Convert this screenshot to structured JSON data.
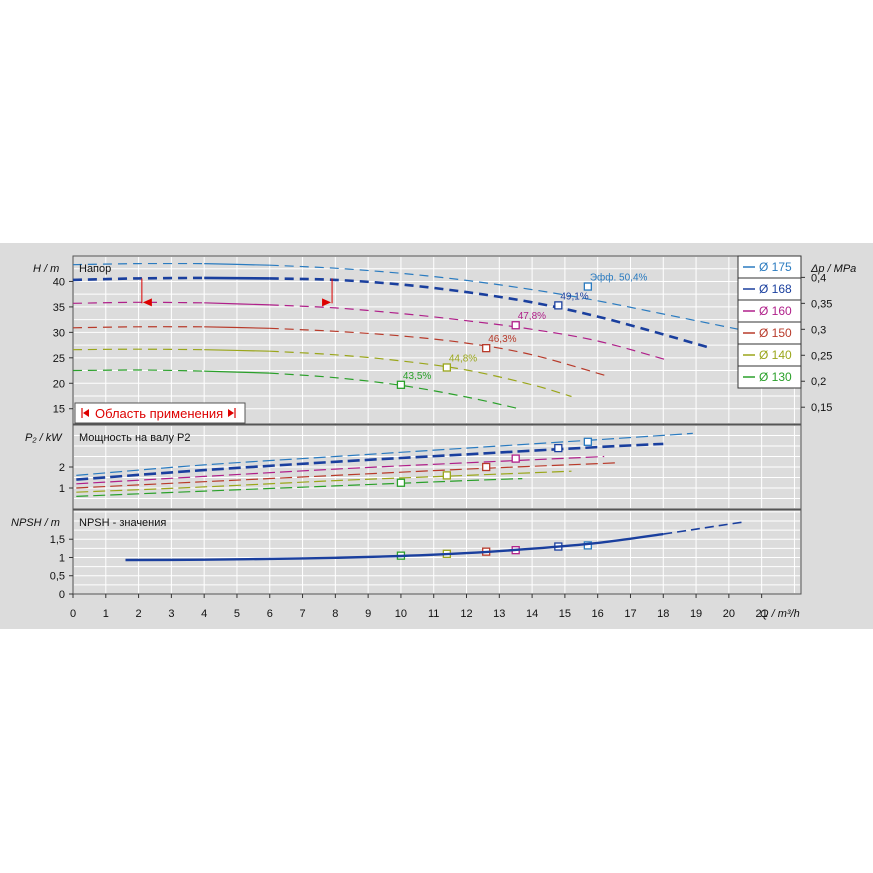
{
  "chart_data": {
    "type": "line",
    "colors": {
      "background": "#dcdcdc",
      "grid": "#ffffff",
      "range_marker": "#dd0000"
    },
    "x": {
      "label": "Q / m³/h",
      "ticks": [
        0,
        1,
        2,
        3,
        4,
        5,
        6,
        7,
        8,
        9,
        10,
        11,
        12,
        13,
        14,
        15,
        16,
        17,
        18,
        19,
        20,
        21
      ],
      "lim": [
        0,
        22.2
      ]
    },
    "panels": {
      "head": {
        "title": "Напор",
        "ylabel": "H / m",
        "ylim": [
          12,
          45
        ],
        "yticks": [
          15,
          20,
          25,
          30,
          35,
          40
        ],
        "right_axis_label": "Δp / MPa",
        "right_ticks": [
          "0,15",
          "0,2",
          "0,25",
          "0,3",
          "0,35",
          "0,4"
        ],
        "range_label": "Область применения",
        "range_q": [
          2.1,
          7.9
        ],
        "range_h": 40.6
      },
      "power": {
        "title": "Мощность на валу P2",
        "ylabel": "P₂ / kW",
        "ylim": [
          0,
          4
        ],
        "yticks": [
          1,
          2
        ]
      },
      "npsh": {
        "title": "NPSH - значения",
        "ylabel": "NPSH / m",
        "ylim": [
          0,
          2.3
        ],
        "yticks": [
          "0",
          "0,5",
          "1",
          "1,5"
        ],
        "yvals": [
          0,
          0.5,
          1,
          1.5
        ]
      }
    },
    "series": [
      {
        "name": "Ø 175",
        "color": "#2a7bc0",
        "head": {
          "q": [
            0,
            2,
            4,
            6,
            8,
            10,
            12,
            14,
            16,
            18,
            20.3
          ],
          "h": [
            43.3,
            43.5,
            43.5,
            43.2,
            42.6,
            41.6,
            40.2,
            38.4,
            36.2,
            33.6,
            30.6
          ]
        },
        "bep": {
          "q": 15.7,
          "h": 39.0,
          "label": "Эфф.  50,4%"
        },
        "power": {
          "q": [
            0.1,
            4,
            8,
            12,
            16,
            18.9
          ],
          "p": [
            1.6,
            2.1,
            2.5,
            2.9,
            3.3,
            3.6
          ]
        },
        "power_bep": {
          "q": 15.7,
          "p": 3.2
        },
        "npsh_bep": {
          "q": 15.7,
          "v": 1.33
        }
      },
      {
        "name": "Ø 168",
        "color": "#1a3f9e",
        "head": {
          "q": [
            0,
            2,
            4,
            6,
            8,
            10,
            12,
            14,
            16,
            18,
            19.4
          ],
          "h": [
            40.3,
            40.6,
            40.7,
            40.6,
            40.3,
            39.4,
            37.9,
            35.9,
            33.1,
            29.6,
            27.0
          ]
        },
        "bep": {
          "q": 14.8,
          "h": 35.3,
          "label": "49,1%"
        },
        "power": {
          "q": [
            0.1,
            4,
            8,
            12,
            16,
            18.0
          ],
          "p": [
            1.4,
            1.85,
            2.25,
            2.6,
            2.95,
            3.1
          ]
        },
        "power_bep": {
          "q": 14.8,
          "p": 2.9
        },
        "npsh_bep": {
          "q": 14.8,
          "v": 1.3
        }
      },
      {
        "name": "Ø 160",
        "color": "#b0208a",
        "head": {
          "q": [
            0,
            2,
            4,
            6,
            8,
            10,
            12,
            14,
            16,
            18.1
          ],
          "h": [
            35.7,
            35.9,
            35.8,
            35.4,
            34.8,
            33.7,
            32.3,
            30.6,
            28.3,
            24.6
          ]
        },
        "bep": {
          "q": 13.5,
          "h": 31.4,
          "label": "47,8%"
        },
        "power": {
          "q": [
            0.1,
            4,
            8,
            12,
            16.2
          ],
          "p": [
            1.2,
            1.55,
            1.9,
            2.2,
            2.5
          ]
        },
        "power_bep": {
          "q": 13.5,
          "p": 2.4
        },
        "npsh_bep": {
          "q": 13.5,
          "v": 1.2
        }
      },
      {
        "name": "Ø 150",
        "color": "#b83a2a",
        "head": {
          "q": [
            0,
            2,
            4,
            6,
            8,
            10,
            12,
            14,
            16.3
          ],
          "h": [
            30.9,
            31.1,
            31.1,
            30.8,
            30.2,
            29.3,
            27.9,
            25.6,
            21.4
          ]
        },
        "bep": {
          "q": 12.6,
          "h": 26.9,
          "label": "46,3%"
        },
        "power": {
          "q": [
            0.1,
            4,
            8,
            12,
            16.6
          ],
          "p": [
            1.0,
            1.3,
            1.6,
            1.9,
            2.2
          ]
        },
        "power_bep": {
          "q": 12.6,
          "p": 2.0
        },
        "npsh_bep": {
          "q": 12.6,
          "v": 1.16
        }
      },
      {
        "name": "Ø 140",
        "color": "#9aa61a",
        "head": {
          "q": [
            0,
            2,
            4,
            6,
            8,
            10,
            12,
            14,
            15.2
          ],
          "h": [
            26.6,
            26.7,
            26.6,
            26.3,
            25.6,
            24.4,
            22.6,
            19.7,
            17.4
          ]
        },
        "bep": {
          "q": 11.4,
          "h": 23.1,
          "label": "44,8%"
        },
        "power": {
          "q": [
            0.1,
            4,
            8,
            12,
            15.2
          ],
          "p": [
            0.8,
            1.05,
            1.35,
            1.6,
            1.8
          ]
        },
        "power_bep": {
          "q": 11.4,
          "p": 1.6
        },
        "npsh_bep": {
          "q": 11.4,
          "v": 1.1
        }
      },
      {
        "name": "Ø 130",
        "color": "#2aa02a",
        "head": {
          "q": [
            0,
            2,
            4,
            6,
            8,
            10,
            12,
            13.6
          ],
          "h": [
            22.5,
            22.6,
            22.4,
            22.0,
            21.1,
            19.6,
            17.3,
            15.0
          ]
        },
        "bep": {
          "q": 10.0,
          "h": 19.7,
          "label": "43,5%"
        },
        "power": {
          "q": [
            0.1,
            4,
            8,
            12,
            13.7
          ],
          "p": [
            0.6,
            0.85,
            1.1,
            1.35,
            1.45
          ]
        },
        "power_bep": {
          "q": 10.0,
          "p": 1.25
        },
        "npsh_bep": {
          "q": 10.0,
          "v": 1.05
        }
      }
    ],
    "npsh_curve": {
      "q": [
        1.6,
        4,
        6,
        8,
        10,
        12,
        14,
        16,
        18,
        20.5
      ],
      "v": [
        0.93,
        0.94,
        0.96,
        0.99,
        1.04,
        1.12,
        1.24,
        1.4,
        1.64,
        1.98
      ]
    }
  }
}
